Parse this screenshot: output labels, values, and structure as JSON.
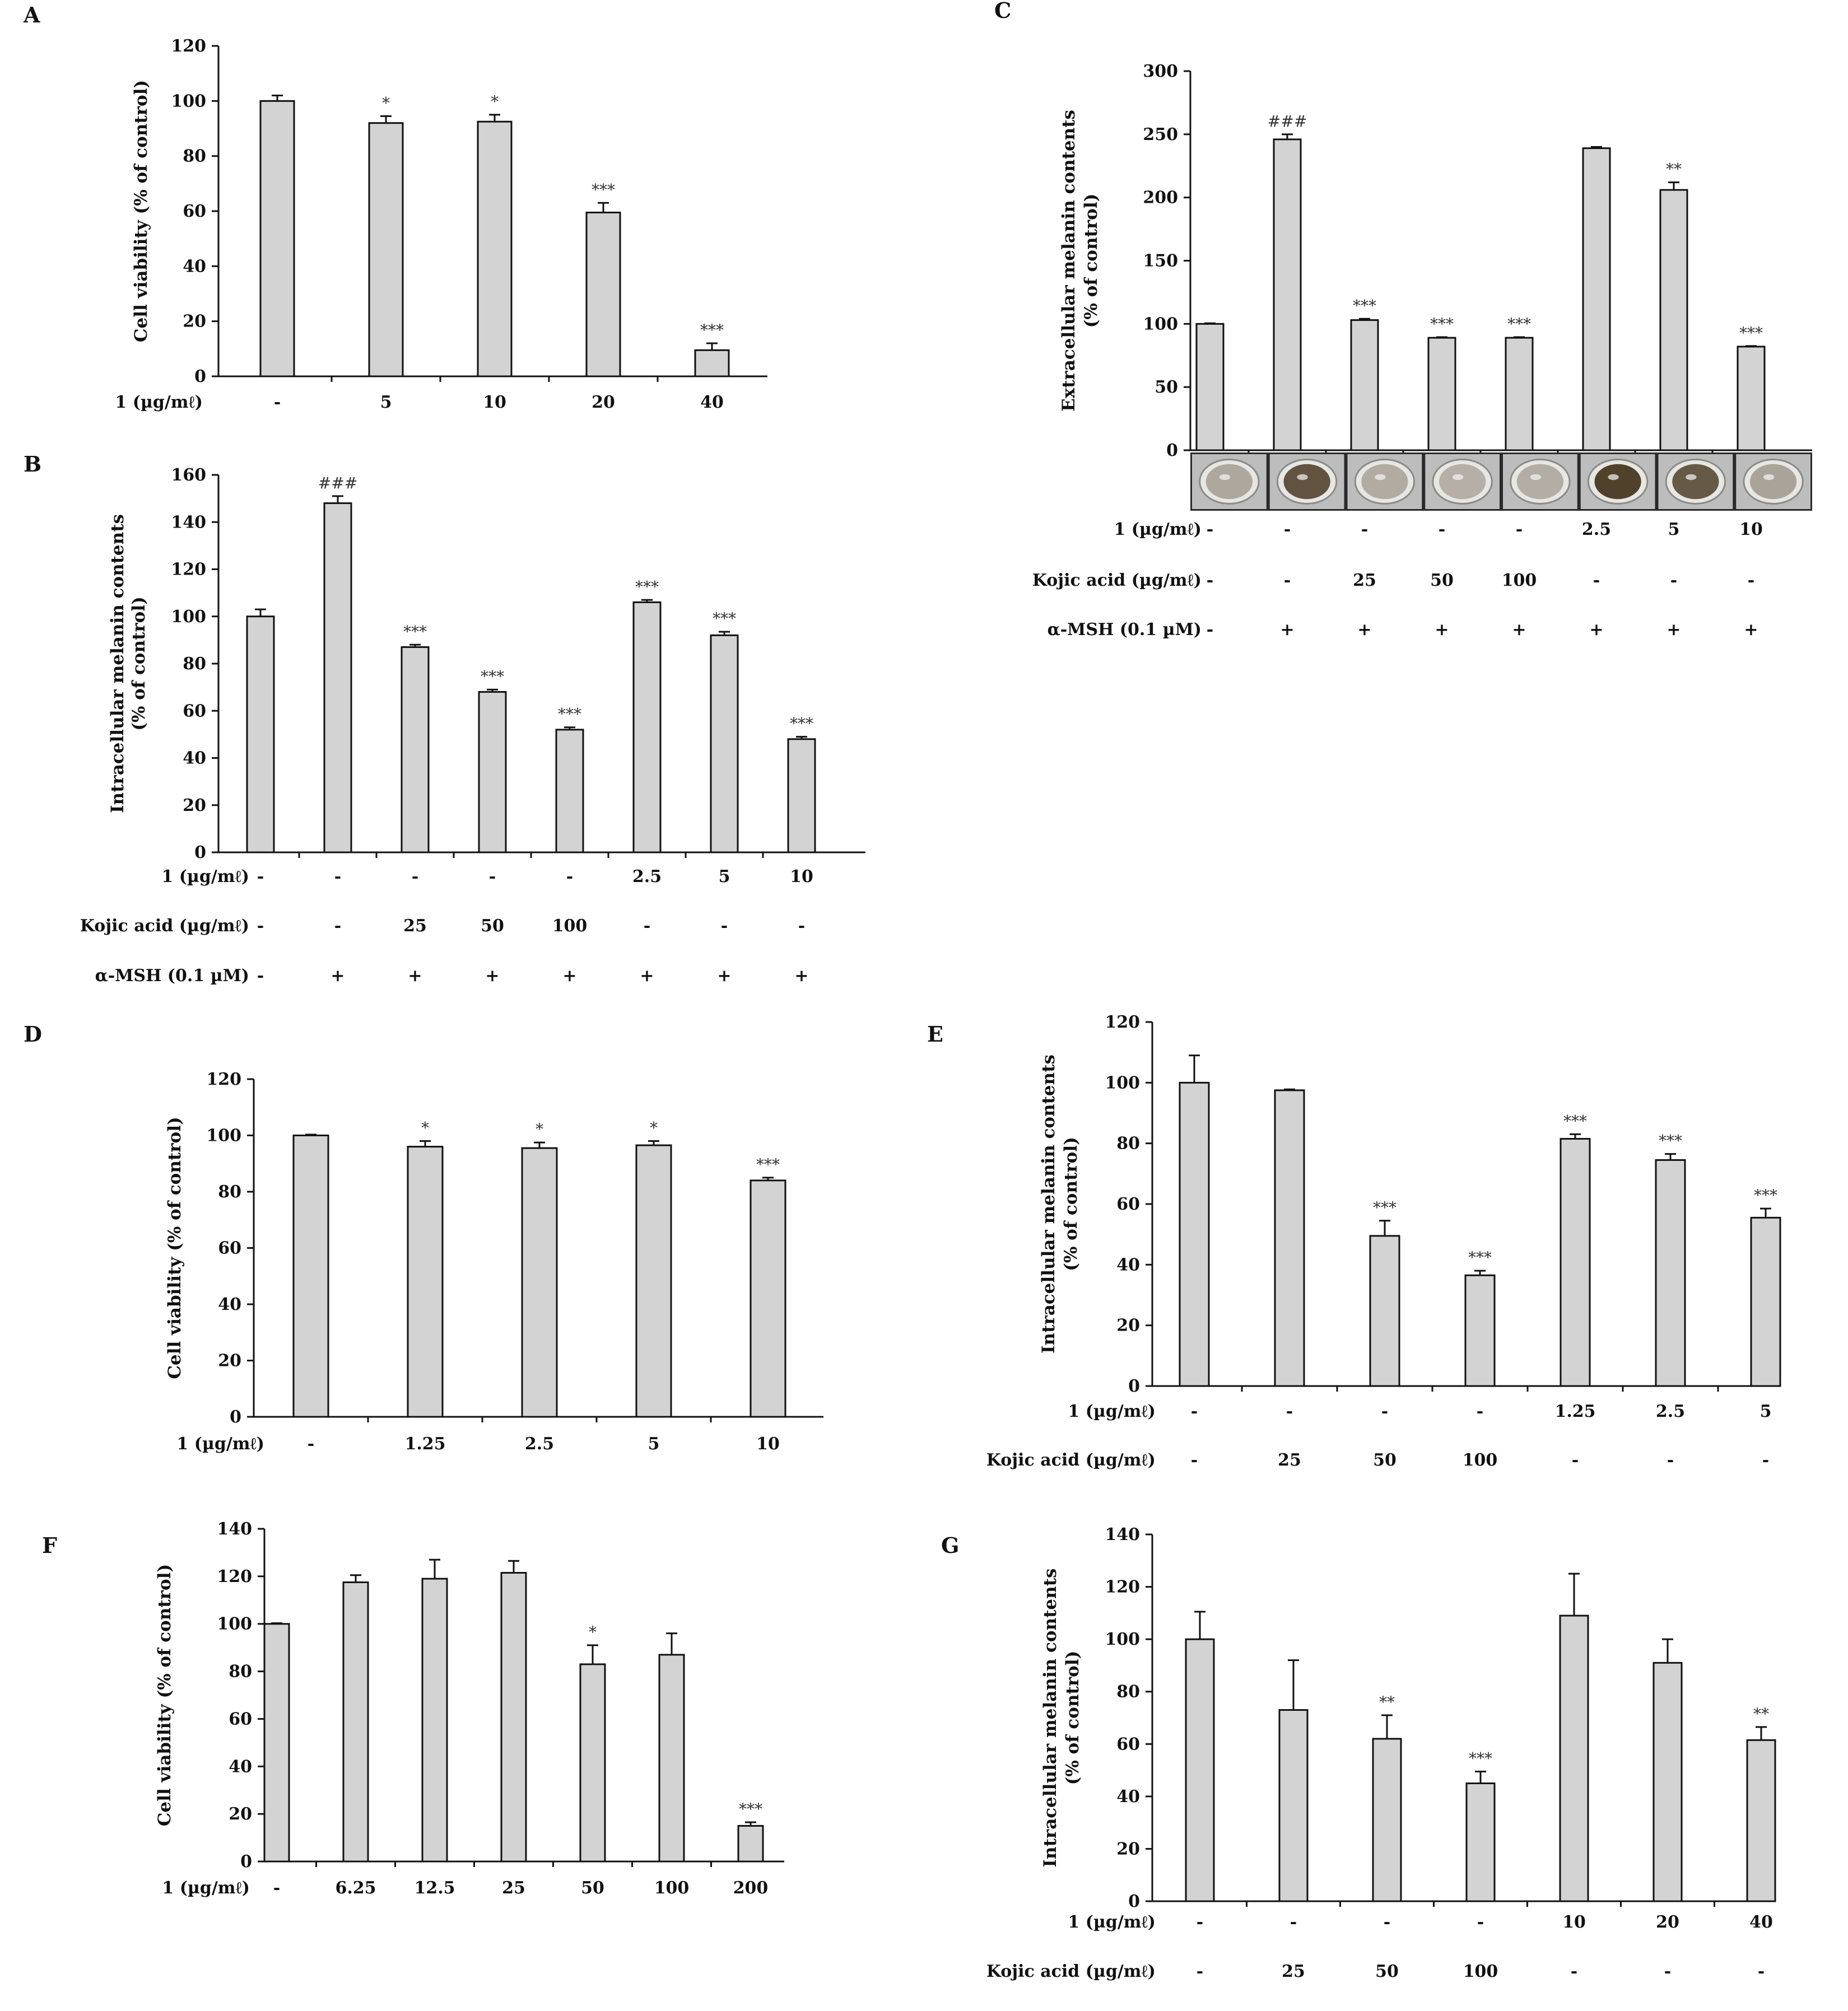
{
  "chart_data": [
    {
      "panel": "A",
      "type": "bar",
      "ylabel": [
        "Cell viability (% of control)"
      ],
      "ylim": [
        0,
        120
      ],
      "yticks": [
        0,
        20,
        40,
        60,
        80,
        100,
        120
      ],
      "values": [
        100,
        92,
        92.5,
        59.5,
        9.5
      ],
      "errors": [
        2,
        2.5,
        2.5,
        3.5,
        2.5
      ],
      "sig": [
        "",
        "*",
        "*",
        "***",
        "***"
      ],
      "rows": [
        {
          "label": "1 (µg/mℓ)",
          "cells": [
            "-",
            "5",
            "10",
            "20",
            "40"
          ]
        }
      ]
    },
    {
      "panel": "B",
      "type": "bar",
      "ylabel": [
        "Intracellular melanin contents",
        "(% of control)"
      ],
      "ylim": [
        0,
        160
      ],
      "yticks": [
        0,
        20,
        40,
        60,
        80,
        100,
        120,
        140,
        160
      ],
      "values": [
        100,
        148,
        87,
        68,
        52,
        106,
        92,
        48
      ],
      "errors": [
        3,
        3,
        1,
        1,
        1,
        1,
        1.5,
        1
      ],
      "sig": [
        "",
        "###",
        "***",
        "***",
        "***",
        "***",
        "***",
        "***"
      ],
      "rows": [
        {
          "label": "1 (µg/mℓ)",
          "cells": [
            "-",
            "-",
            "-",
            "-",
            "-",
            "2.5",
            "5",
            "10"
          ]
        },
        {
          "label": "Kojic acid (µg/mℓ)",
          "cells": [
            "-",
            "-",
            "25",
            "50",
            "100",
            "-",
            "-",
            "-"
          ]
        },
        {
          "label": "α-MSH (0.1 µM)",
          "cells": [
            "-",
            "+",
            "+",
            "+",
            "+",
            "+",
            "+",
            "+"
          ]
        }
      ]
    },
    {
      "panel": "C",
      "type": "bar",
      "ylabel": [
        "Extracellular melanin contents",
        "(% of control)"
      ],
      "ylim": [
        0,
        300
      ],
      "yticks": [
        0,
        50,
        100,
        150,
        200,
        250,
        300
      ],
      "values": [
        100,
        246,
        103,
        89,
        89,
        239,
        206,
        82
      ],
      "errors": [
        0.5,
        4,
        1,
        0.5,
        0.5,
        1,
        6,
        0.5
      ],
      "sig": [
        "",
        "###",
        "***",
        "***",
        "***",
        "",
        "**",
        "***"
      ],
      "wells": [
        0.15,
        0.85,
        0.12,
        0.08,
        0.1,
        1.0,
        0.8,
        0.18
      ],
      "rows": [
        {
          "label": "1 (µg/mℓ)",
          "cells": [
            "-",
            "-",
            "-",
            "-",
            "-",
            "2.5",
            "5",
            "10"
          ]
        },
        {
          "label": "Kojic acid (µg/mℓ)",
          "cells": [
            "-",
            "-",
            "25",
            "50",
            "100",
            "-",
            "-",
            "-"
          ]
        },
        {
          "label": "α-MSH (0.1 µM)",
          "cells": [
            "-",
            "+",
            "+",
            "+",
            "+",
            "+",
            "+",
            "+"
          ]
        }
      ]
    },
    {
      "panel": "D",
      "type": "bar",
      "ylabel": [
        "Cell viability (% of control)"
      ],
      "ylim": [
        0,
        120
      ],
      "yticks": [
        0,
        20,
        40,
        60,
        80,
        100,
        120
      ],
      "values": [
        100,
        96,
        95.5,
        96.5,
        84
      ],
      "errors": [
        0.3,
        2,
        2,
        1.5,
        1
      ],
      "sig": [
        "",
        "*",
        "*",
        "*",
        "***"
      ],
      "rows": [
        {
          "label": "1 (µg/mℓ)",
          "cells": [
            "-",
            "1.25",
            "2.5",
            "5",
            "10"
          ]
        }
      ]
    },
    {
      "panel": "E",
      "type": "bar",
      "ylabel": [
        "Intracellular melanin contents",
        "(% of control)"
      ],
      "ylim": [
        0,
        120
      ],
      "yticks": [
        0,
        20,
        40,
        60,
        80,
        100,
        120
      ],
      "values": [
        100,
        97.5,
        49.5,
        36.5,
        81.5,
        74.5,
        55.5
      ],
      "errors": [
        9,
        0.3,
        5,
        1.5,
        1.5,
        2,
        3
      ],
      "sig": [
        "",
        "",
        "***",
        "***",
        "***",
        "***",
        "***"
      ],
      "rows": [
        {
          "label": "1 (µg/mℓ)",
          "cells": [
            "-",
            "-",
            "-",
            "-",
            "1.25",
            "2.5",
            "5"
          ]
        },
        {
          "label": "Kojic acid (µg/mℓ)",
          "cells": [
            "-",
            "25",
            "50",
            "100",
            "-",
            "-",
            "-"
          ]
        }
      ]
    },
    {
      "panel": "F",
      "type": "bar",
      "ylabel": [
        "Cell viability (% of control)"
      ],
      "ylim": [
        0,
        140
      ],
      "yticks": [
        0,
        20,
        40,
        60,
        80,
        100,
        120,
        140
      ],
      "values": [
        100,
        117.5,
        119,
        121.5,
        83,
        87,
        15
      ],
      "errors": [
        0.3,
        3,
        8,
        5,
        8,
        9,
        1.5
      ],
      "sig": [
        "",
        "",
        "",
        "",
        "*",
        "",
        "***"
      ],
      "rows": [
        {
          "label": "1 (µg/mℓ)",
          "cells": [
            "-",
            "6.25",
            "12.5",
            "25",
            "50",
            "100",
            "200"
          ]
        }
      ]
    },
    {
      "panel": "G",
      "type": "bar",
      "ylabel": [
        "Intracellular melanin contents",
        "(% of control)"
      ],
      "ylim": [
        0,
        140
      ],
      "yticks": [
        0,
        20,
        40,
        60,
        80,
        100,
        120,
        140
      ],
      "values": [
        100,
        73,
        62,
        45,
        109,
        91,
        61.5
      ],
      "errors": [
        10.5,
        19,
        9,
        4.5,
        16,
        9,
        5
      ],
      "sig": [
        "",
        "",
        "**",
        "***",
        "",
        "",
        "**"
      ],
      "rows": [
        {
          "label": "1 (µg/mℓ)",
          "cells": [
            "-",
            "-",
            "-",
            "-",
            "10",
            "20",
            "40"
          ]
        },
        {
          "label": "Kojic acid (µg/mℓ)",
          "cells": [
            "-",
            "25",
            "50",
            "100",
            "-",
            "-",
            "-"
          ]
        }
      ]
    }
  ]
}
